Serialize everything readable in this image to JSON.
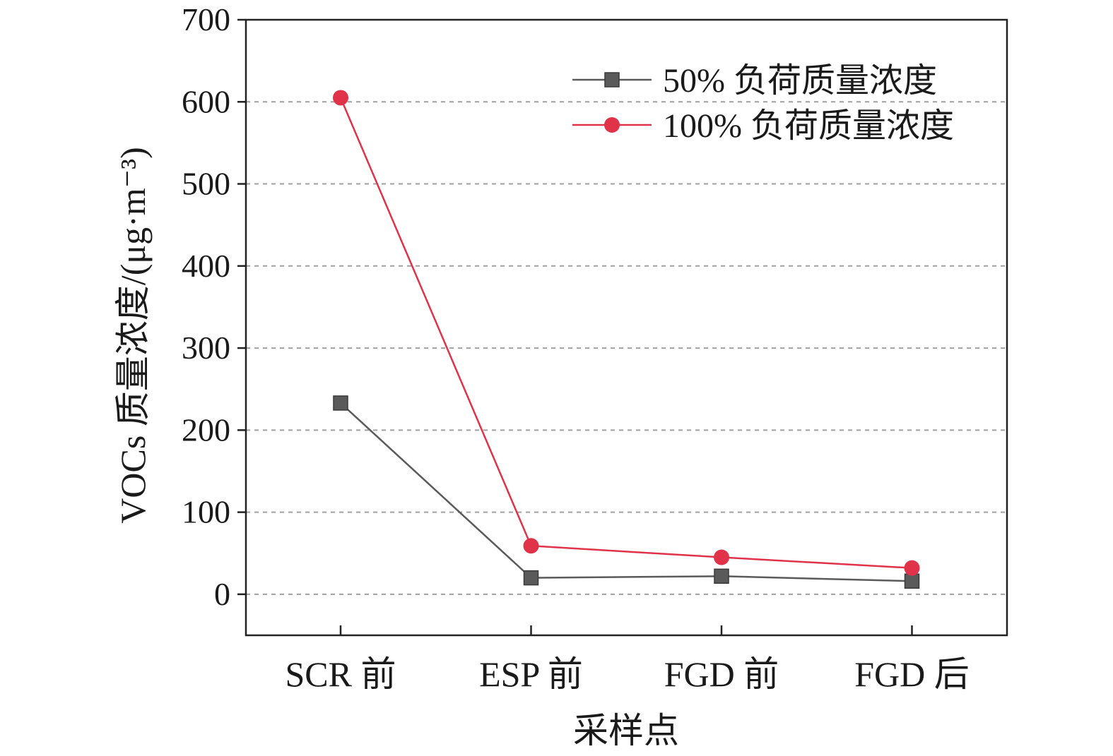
{
  "chart_data": {
    "type": "line",
    "categories": [
      "SCR 前",
      "ESP 前",
      "FGD 前",
      "FGD 后"
    ],
    "series": [
      {
        "name": "50% 负荷质量浓度",
        "values": [
          233,
          20,
          22,
          16
        ],
        "color": "#5a5a5a",
        "marker": "square"
      },
      {
        "name": "100% 负荷质量浓度",
        "values": [
          605,
          59,
          45,
          32
        ],
        "color": "#e0334a",
        "marker": "circle"
      }
    ],
    "xlabel": "采样点",
    "ylabel": "VOCs 质量浓度/(μg·m⁻³)",
    "ylim": [
      -50,
      700
    ],
    "yticks": [
      0,
      100,
      200,
      300,
      400,
      500,
      600,
      700
    ],
    "grid": true,
    "legend": "top-right"
  }
}
